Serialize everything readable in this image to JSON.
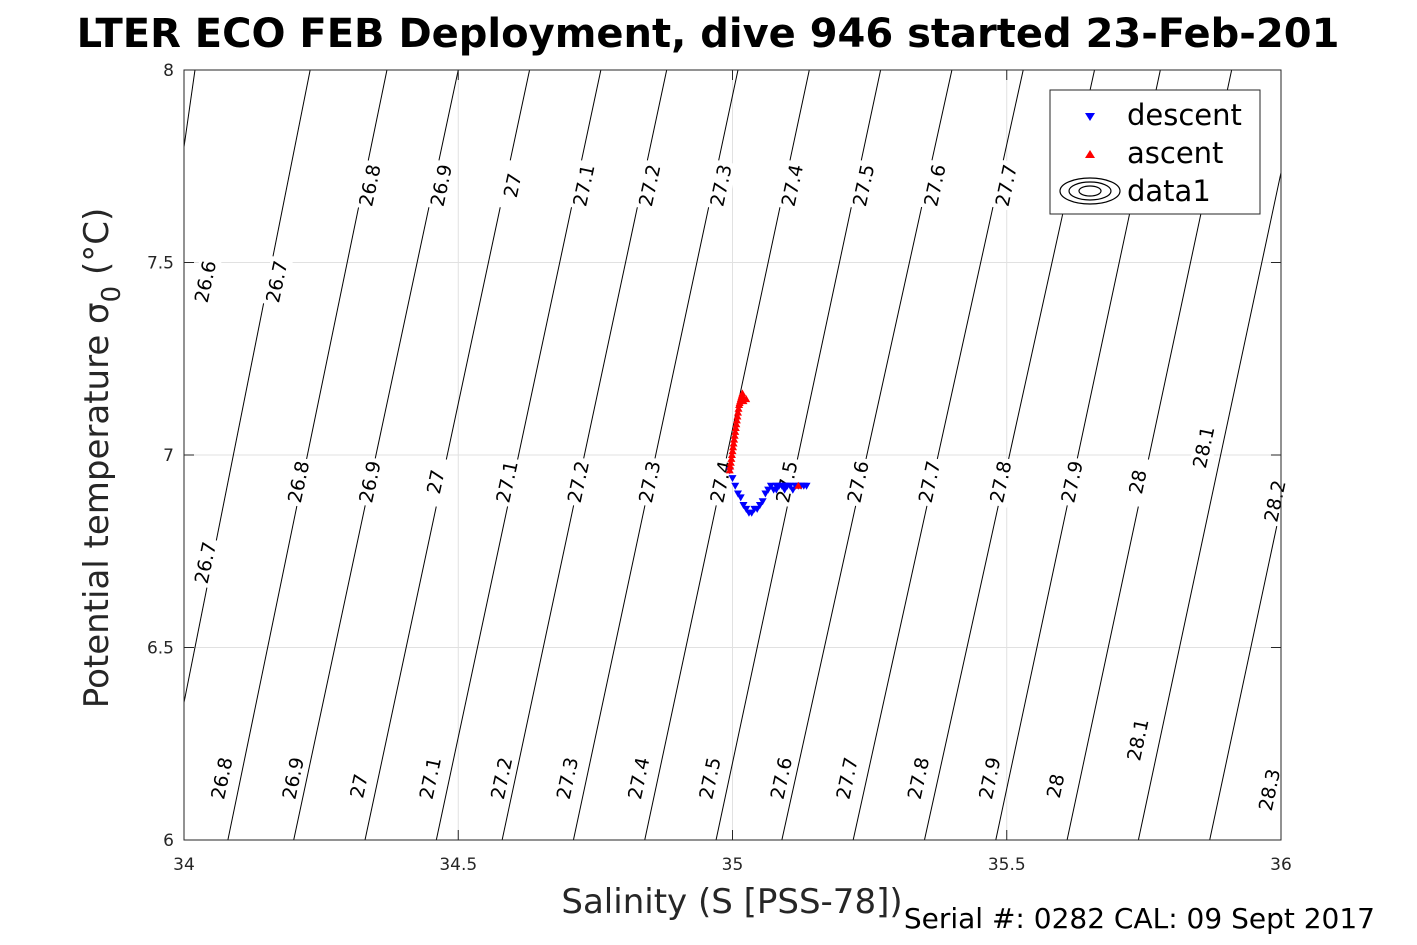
{
  "chart_data": {
    "type": "scatter",
    "title": "LTER ECO FEB Deployment, dive 946 started 23-Feb-201",
    "xlabel": "Salinity (S [PSS-78])",
    "ylabel": "Potential temperature σ0 (°C)",
    "ylabel_main": "Potential temperature σ",
    "ylabel_sub": "0",
    "ylabel_tail": " (°C)",
    "xlim": [
      34,
      36
    ],
    "ylim": [
      6,
      8
    ],
    "grid": true,
    "x_ticks": [
      34,
      34.5,
      35,
      35.5,
      36
    ],
    "x_tick_labels": [
      "34",
      "34.5",
      "35",
      "35.5",
      "36"
    ],
    "y_ticks": [
      6,
      6.5,
      7,
      7.5,
      8
    ],
    "y_tick_labels": [
      "6",
      "6.5",
      "7",
      "7.5",
      "8"
    ],
    "legend_position": "top-right",
    "legend": [
      "descent",
      "ascent",
      "data1"
    ],
    "contour_levels": [
      "26.6",
      "26.7",
      "26.8",
      "26.9",
      "27",
      "27.1",
      "27.2",
      "27.3",
      "27.4",
      "27.5",
      "27.6",
      "27.7",
      "27.8",
      "27.9",
      "28",
      "28.1",
      "28.2",
      "28.3"
    ],
    "contour_lines": [
      {
        "level": 26.6,
        "x_at_6": 33.82,
        "x_at_8": 34.02
      },
      {
        "level": 26.7,
        "x_at_6": 33.95,
        "x_at_8": 34.23
      },
      {
        "level": 26.8,
        "x_at_6": 34.08,
        "x_at_8": 34.37
      },
      {
        "level": 26.9,
        "x_at_6": 34.2,
        "x_at_8": 34.5
      },
      {
        "level": 27.0,
        "x_at_6": 34.33,
        "x_at_8": 34.63
      },
      {
        "level": 27.1,
        "x_at_6": 34.46,
        "x_at_8": 34.76
      },
      {
        "level": 27.2,
        "x_at_6": 34.58,
        "x_at_8": 34.88
      },
      {
        "level": 27.3,
        "x_at_6": 34.71,
        "x_at_8": 35.01
      },
      {
        "level": 27.4,
        "x_at_6": 34.84,
        "x_at_8": 35.14
      },
      {
        "level": 27.5,
        "x_at_6": 34.97,
        "x_at_8": 35.27
      },
      {
        "level": 27.6,
        "x_at_6": 35.09,
        "x_at_8": 35.4
      },
      {
        "level": 27.7,
        "x_at_6": 35.22,
        "x_at_8": 35.53
      },
      {
        "level": 27.8,
        "x_at_6": 35.35,
        "x_at_8": 35.66
      },
      {
        "level": 27.9,
        "x_at_6": 35.48,
        "x_at_8": 35.78
      },
      {
        "level": 28.0,
        "x_at_6": 35.61,
        "x_at_8": 35.91
      },
      {
        "level": 28.1,
        "x_at_6": 35.74,
        "x_at_8": 36.04
      },
      {
        "level": 28.2,
        "x_at_6": 35.87,
        "x_at_8": 36.17
      },
      {
        "level": 28.3,
        "x_at_6": 36.0,
        "x_at_8": 36.3
      }
    ],
    "contour_labels": [
      {
        "text": "26.6",
        "x": 34.04,
        "y": 7.45
      },
      {
        "text": "26.7",
        "x": 34.17,
        "y": 7.45
      },
      {
        "text": "26.8",
        "x": 34.34,
        "y": 7.7
      },
      {
        "text": "26.9",
        "x": 34.47,
        "y": 7.7
      },
      {
        "text": "27",
        "x": 34.6,
        "y": 7.7
      },
      {
        "text": "27.1",
        "x": 34.73,
        "y": 7.7
      },
      {
        "text": "27.2",
        "x": 34.85,
        "y": 7.7
      },
      {
        "text": "27.3",
        "x": 34.98,
        "y": 7.7
      },
      {
        "text": "27.4",
        "x": 35.11,
        "y": 7.7
      },
      {
        "text": "27.5",
        "x": 35.24,
        "y": 7.7
      },
      {
        "text": "27.6",
        "x": 35.37,
        "y": 7.7
      },
      {
        "text": "27.7",
        "x": 35.5,
        "y": 7.7
      },
      {
        "text": "26.8",
        "x": 34.21,
        "y": 6.93
      },
      {
        "text": "26.9",
        "x": 34.34,
        "y": 6.93
      },
      {
        "text": "27",
        "x": 34.46,
        "y": 6.93
      },
      {
        "text": "27.1",
        "x": 34.59,
        "y": 6.93
      },
      {
        "text": "27.2",
        "x": 34.72,
        "y": 6.93
      },
      {
        "text": "27.3",
        "x": 34.85,
        "y": 6.93
      },
      {
        "text": "27.4",
        "x": 34.98,
        "y": 6.93
      },
      {
        "text": "27.5",
        "x": 35.1,
        "y": 6.93
      },
      {
        "text": "27.6",
        "x": 35.23,
        "y": 6.93
      },
      {
        "text": "27.7",
        "x": 35.36,
        "y": 6.93
      },
      {
        "text": "27.8",
        "x": 35.49,
        "y": 6.93
      },
      {
        "text": "27.9",
        "x": 35.62,
        "y": 6.93
      },
      {
        "text": "28",
        "x": 35.74,
        "y": 6.93
      },
      {
        "text": "28.1",
        "x": 35.86,
        "y": 7.02
      },
      {
        "text": "28.2",
        "x": 35.99,
        "y": 6.88
      },
      {
        "text": "26.7",
        "x": 34.04,
        "y": 6.72
      },
      {
        "text": "26.8",
        "x": 34.07,
        "y": 6.16
      },
      {
        "text": "26.9",
        "x": 34.2,
        "y": 6.16
      },
      {
        "text": "27",
        "x": 34.32,
        "y": 6.14
      },
      {
        "text": "27.1",
        "x": 34.45,
        "y": 6.16
      },
      {
        "text": "27.2",
        "x": 34.58,
        "y": 6.16
      },
      {
        "text": "27.3",
        "x": 34.7,
        "y": 6.16
      },
      {
        "text": "27.4",
        "x": 34.83,
        "y": 6.16
      },
      {
        "text": "27.5",
        "x": 34.96,
        "y": 6.16
      },
      {
        "text": "27.6",
        "x": 35.09,
        "y": 6.16
      },
      {
        "text": "27.7",
        "x": 35.21,
        "y": 6.16
      },
      {
        "text": "27.8",
        "x": 35.34,
        "y": 6.16
      },
      {
        "text": "27.9",
        "x": 35.47,
        "y": 6.16
      },
      {
        "text": "28",
        "x": 35.59,
        "y": 6.14
      },
      {
        "text": "28.1",
        "x": 35.74,
        "y": 6.26
      },
      {
        "text": "28.3",
        "x": 35.98,
        "y": 6.13
      }
    ],
    "series": [
      {
        "name": "descent",
        "marker": "down-triangle",
        "color": "#0000ff",
        "x": [
          34.995,
          35.0,
          35.005,
          35.01,
          35.015,
          35.02,
          35.025,
          35.03,
          35.035,
          35.04,
          35.045,
          35.05,
          35.055,
          35.06,
          35.065,
          35.07,
          35.075,
          35.08,
          35.085,
          35.09,
          35.095,
          35.1,
          35.105,
          35.11,
          35.115,
          35.12,
          35.125,
          35.13,
          35.135,
          35.08,
          35.095,
          35.11
        ],
        "y": [
          6.96,
          6.94,
          6.92,
          6.9,
          6.89,
          6.87,
          6.86,
          6.85,
          6.85,
          6.86,
          6.86,
          6.87,
          6.88,
          6.9,
          6.91,
          6.92,
          6.91,
          6.92,
          6.92,
          6.92,
          6.91,
          6.92,
          6.92,
          6.91,
          6.92,
          6.92,
          6.92,
          6.92,
          6.92,
          6.91,
          6.92,
          6.91
        ]
      },
      {
        "name": "ascent",
        "marker": "up-triangle",
        "color": "#ff0000",
        "x": [
          34.995,
          34.996,
          34.997,
          34.998,
          34.999,
          35.0,
          35.001,
          35.002,
          35.003,
          35.004,
          35.005,
          35.006,
          35.007,
          35.008,
          35.009,
          35.01,
          35.011,
          35.012,
          35.013,
          35.014,
          35.015,
          35.016,
          35.017,
          35.018,
          35.019,
          35.02,
          35.025,
          35.12
        ],
        "y": [
          6.96,
          6.97,
          6.98,
          6.99,
          7.0,
          7.01,
          7.02,
          7.03,
          7.04,
          7.05,
          7.06,
          7.07,
          7.08,
          7.09,
          7.1,
          7.11,
          7.12,
          7.13,
          7.135,
          7.14,
          7.145,
          7.15,
          7.155,
          7.16,
          7.15,
          7.14,
          7.145,
          6.92
        ]
      }
    ]
  },
  "footer": {
    "serial_text": "Serial #: 0282  CAL: 09 Sept 2017"
  }
}
